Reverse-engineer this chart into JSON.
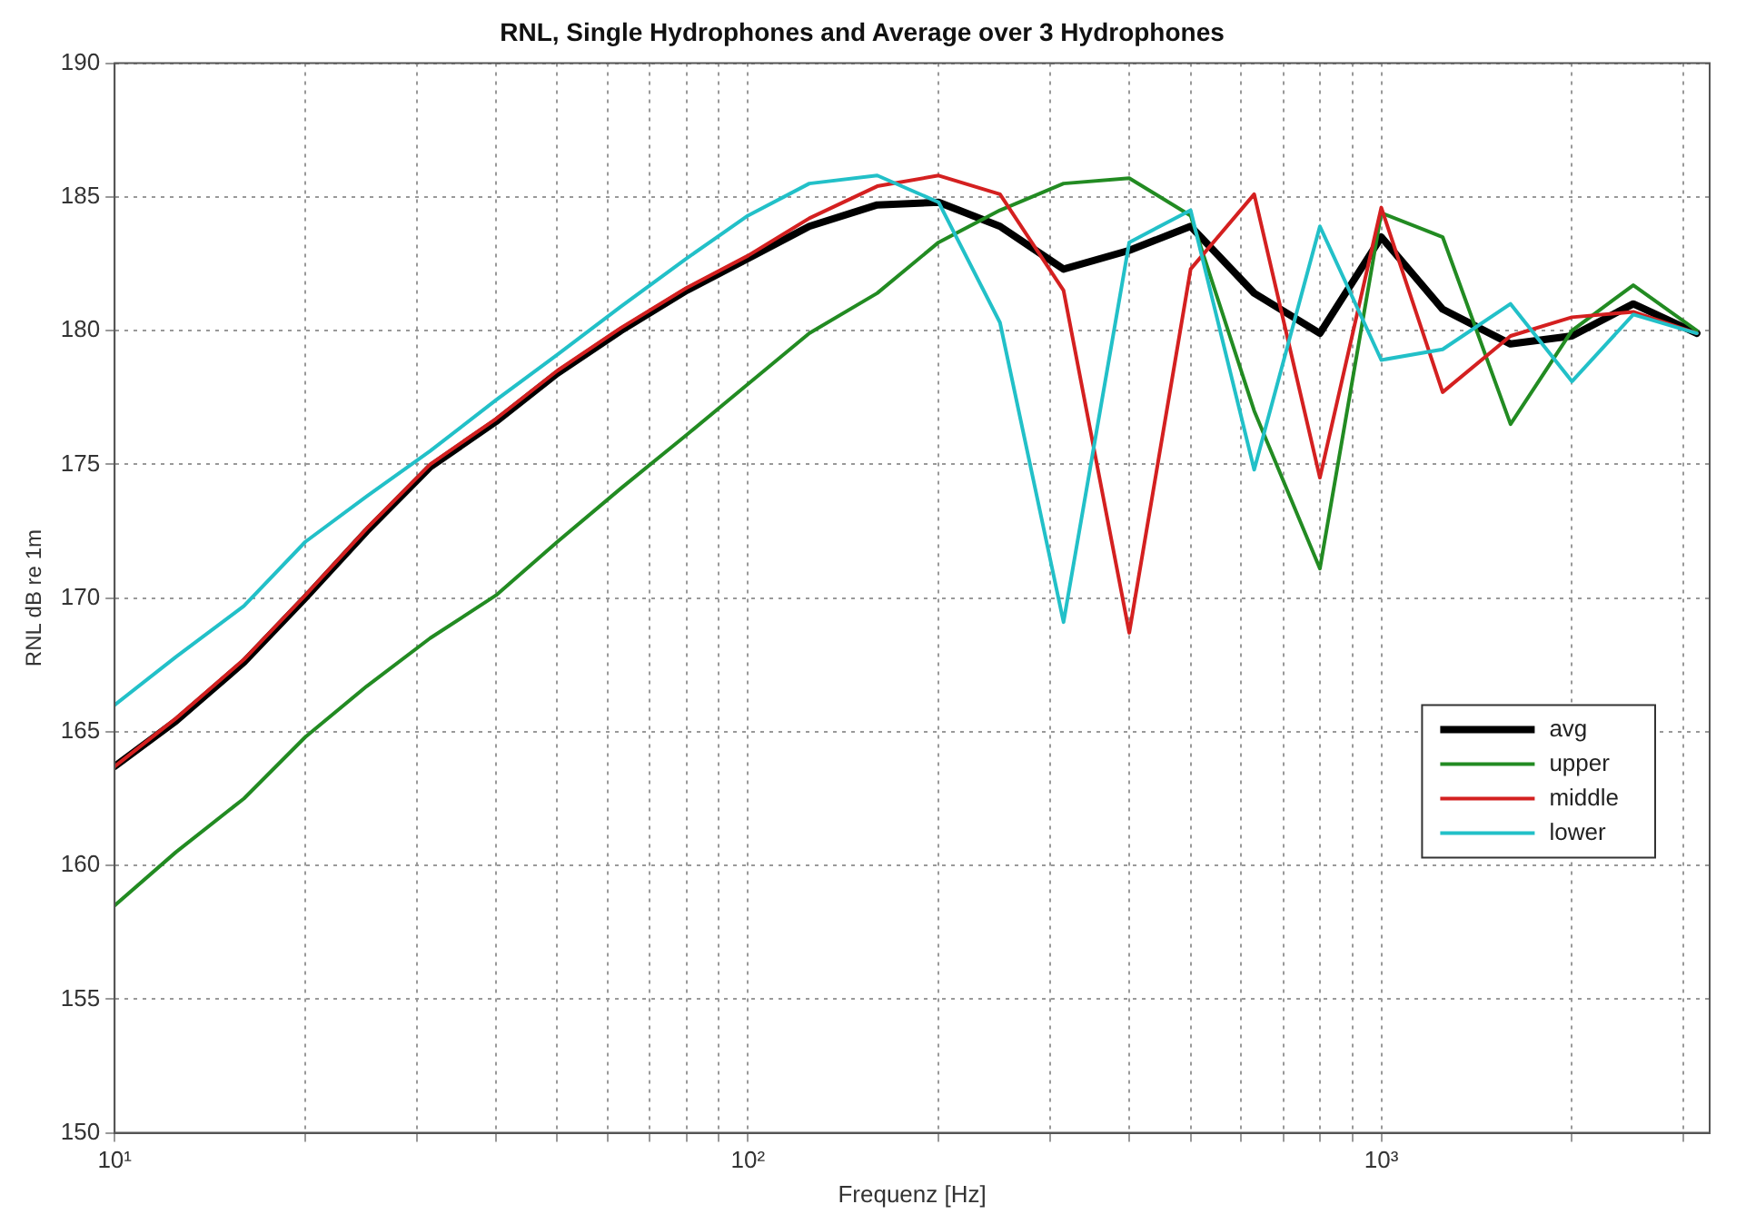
{
  "chart_data": {
    "type": "line",
    "title": "RNL, Single Hydrophones and Average over 3 Hydrophones",
    "xlabel": "Frequenz [Hz]",
    "ylabel": "RNL dB re 1m",
    "x": [
      10,
      12.5,
      16,
      20,
      25,
      31.5,
      40,
      50,
      63,
      80,
      100,
      125,
      160,
      200,
      250,
      315,
      400,
      500,
      630,
      800,
      1000,
      1250,
      1600,
      2000,
      2500,
      3150
    ],
    "series": [
      {
        "name": "avg",
        "color": "#000000",
        "values": [
          163.7,
          165.4,
          167.6,
          170.0,
          172.5,
          174.9,
          176.6,
          178.4,
          180.0,
          181.5,
          182.7,
          183.9,
          184.7,
          184.8,
          183.9,
          182.3,
          183.0,
          183.9,
          181.4,
          179.9,
          183.5,
          180.8,
          179.5,
          179.8,
          181.0,
          179.9
        ]
      },
      {
        "name": "upper",
        "color": "#228b22",
        "values": [
          158.5,
          160.5,
          162.5,
          164.8,
          166.7,
          168.5,
          170.1,
          172.1,
          174.1,
          176.1,
          178.0,
          179.9,
          181.4,
          183.3,
          184.5,
          185.5,
          185.7,
          184.3,
          177.0,
          171.1,
          184.4,
          183.5,
          176.5,
          180.0,
          181.7,
          180.0
        ]
      },
      {
        "name": "middle",
        "color": "#d42020",
        "values": [
          163.7,
          165.5,
          167.7,
          170.1,
          172.6,
          175.0,
          176.7,
          178.5,
          180.1,
          181.6,
          182.8,
          184.2,
          185.4,
          185.8,
          185.1,
          181.5,
          168.7,
          182.3,
          185.1,
          174.5,
          184.6,
          177.7,
          179.8,
          180.5,
          180.7,
          179.9
        ]
      },
      {
        "name": "lower",
        "color": "#22c0c8",
        "values": [
          166.0,
          167.8,
          169.7,
          172.1,
          173.8,
          175.5,
          177.4,
          179.1,
          180.9,
          182.7,
          184.3,
          185.5,
          185.8,
          184.8,
          180.3,
          169.1,
          183.3,
          184.5,
          174.8,
          183.9,
          178.9,
          179.3,
          181.0,
          178.1,
          180.6,
          179.9
        ]
      }
    ],
    "log": "x",
    "xlim": [
      10,
      3300
    ],
    "ylim": [
      150,
      190
    ],
    "xticks": [
      {
        "value": 10,
        "label": "10¹"
      },
      {
        "value": 20,
        "label": null
      },
      {
        "value": 30,
        "label": null
      },
      {
        "value": 40,
        "label": null
      },
      {
        "value": 50,
        "label": null
      },
      {
        "value": 60,
        "label": null
      },
      {
        "value": 70,
        "label": null
      },
      {
        "value": 80,
        "label": null
      },
      {
        "value": 90,
        "label": null
      },
      {
        "value": 100,
        "label": "10²"
      },
      {
        "value": 200,
        "label": null
      },
      {
        "value": 300,
        "label": null
      },
      {
        "value": 400,
        "label": null
      },
      {
        "value": 500,
        "label": null
      },
      {
        "value": 600,
        "label": null
      },
      {
        "value": 700,
        "label": null
      },
      {
        "value": 800,
        "label": null
      },
      {
        "value": 900,
        "label": null
      },
      {
        "value": 1000,
        "label": "10³"
      },
      {
        "value": 2000,
        "label": null
      },
      {
        "value": 3000,
        "label": null
      }
    ],
    "yticks": [
      150,
      155,
      160,
      165,
      170,
      175,
      180,
      185,
      190
    ],
    "grid": true,
    "legend": "right",
    "marker": "none",
    "line_style": "solid"
  }
}
